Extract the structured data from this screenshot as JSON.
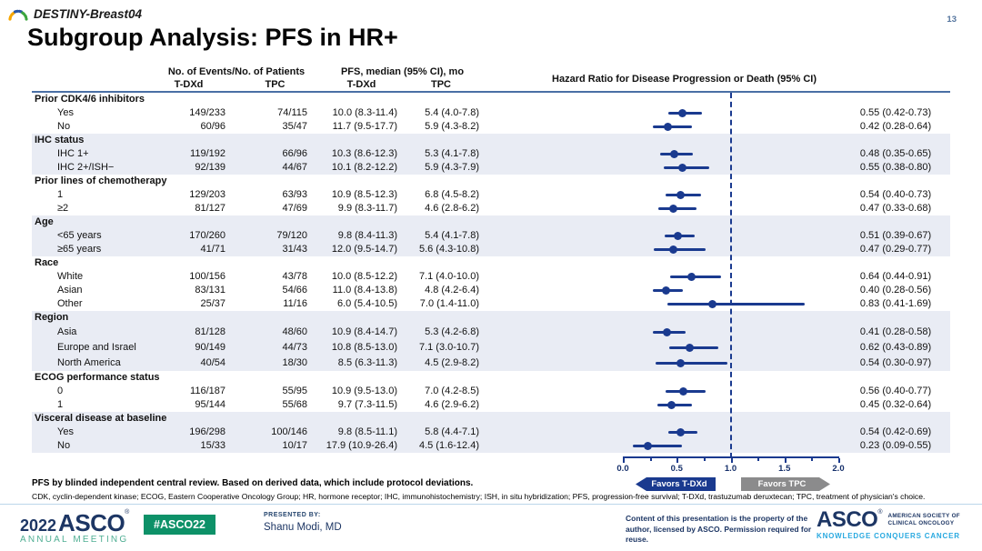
{
  "slide": {
    "program": "DESTINY-Breast04",
    "page_number": "13",
    "title": "Subgroup Analysis: PFS in HR+"
  },
  "table": {
    "headers": {
      "events_group": "No. of Events/No. of Patients",
      "events_tdxd": "T-DXd",
      "events_tpc": "TPC",
      "pfs_group": "PFS, median (95% CI), mo",
      "pfs_tdxd": "T-DXd",
      "pfs_tpc": "TPC",
      "hr_group": "Hazard Ratio for Disease Progression or Death  (95% CI)"
    }
  },
  "chart_data": {
    "type": "forest",
    "title": "Subgroup Analysis: PFS in HR+",
    "x_axis": {
      "range": [
        0.0,
        2.0
      ],
      "ticks": [
        0.0,
        0.5,
        1.0,
        1.5,
        2.0
      ],
      "tick_labels": [
        "0.0",
        "0.5",
        "1.0",
        "1.5",
        "2.0"
      ],
      "reference_line": 1.0
    },
    "favors_left": "Favors T-DXd",
    "favors_right": "Favors TPC",
    "groups": [
      {
        "label": "Prior CDK4/6 inhibitors",
        "rows": [
          {
            "label": "Yes",
            "events_tdxd": "149/233",
            "events_tpc": "74/115",
            "pfs_tdxd": "10.0 (8.3-11.4)",
            "pfs_tpc": "5.4 (4.0-7.8)",
            "hr": 0.55,
            "ci": [
              0.42,
              0.73
            ],
            "hr_text": "0.55 (0.42-0.73)"
          },
          {
            "label": "No",
            "events_tdxd": "60/96",
            "events_tpc": "35/47",
            "pfs_tdxd": "11.7 (9.5-17.7)",
            "pfs_tpc": "5.9 (4.3-8.2)",
            "hr": 0.42,
            "ci": [
              0.28,
              0.64
            ],
            "hr_text": "0.42 (0.28-0.64)"
          }
        ]
      },
      {
        "label": "IHC status",
        "rows": [
          {
            "label": "IHC 1+",
            "events_tdxd": "119/192",
            "events_tpc": "66/96",
            "pfs_tdxd": "10.3 (8.6-12.3)",
            "pfs_tpc": "5.3 (4.1-7.8)",
            "hr": 0.48,
            "ci": [
              0.35,
              0.65
            ],
            "hr_text": "0.48 (0.35-0.65)"
          },
          {
            "label": "IHC 2+/ISH−",
            "events_tdxd": "92/139",
            "events_tpc": "44/67",
            "pfs_tdxd": "10.1 (8.2-12.2)",
            "pfs_tpc": "5.9 (4.3-7.9)",
            "hr": 0.55,
            "ci": [
              0.38,
              0.8
            ],
            "hr_text": "0.55 (0.38-0.80)"
          }
        ]
      },
      {
        "label": "Prior lines of chemotherapy",
        "rows": [
          {
            "label": "1",
            "events_tdxd": "129/203",
            "events_tpc": "63/93",
            "pfs_tdxd": "10.9 (8.5-12.3)",
            "pfs_tpc": "6.8 (4.5-8.2)",
            "hr": 0.54,
            "ci": [
              0.4,
              0.73
            ],
            "hr_text": "0.54 (0.40-0.73)"
          },
          {
            "label": "≥2",
            "events_tdxd": "81/127",
            "events_tpc": "47/69",
            "pfs_tdxd": "9.9 (8.3-11.7)",
            "pfs_tpc": "4.6 (2.8-6.2)",
            "hr": 0.47,
            "ci": [
              0.33,
              0.68
            ],
            "hr_text": "0.47 (0.33-0.68)"
          }
        ]
      },
      {
        "label": "Age",
        "rows": [
          {
            "label": "<65 years",
            "events_tdxd": "170/260",
            "events_tpc": "79/120",
            "pfs_tdxd": "9.8 (8.4-11.3)",
            "pfs_tpc": "5.4 (4.1-7.8)",
            "hr": 0.51,
            "ci": [
              0.39,
              0.67
            ],
            "hr_text": "0.51 (0.39-0.67)"
          },
          {
            "label": "≥65 years",
            "events_tdxd": "41/71",
            "events_tpc": "31/43",
            "pfs_tdxd": "12.0 (9.5-14.7)",
            "pfs_tpc": "5.6 (4.3-10.8)",
            "hr": 0.47,
            "ci": [
              0.29,
              0.77
            ],
            "hr_text": "0.47 (0.29-0.77)"
          }
        ]
      },
      {
        "label": "Race",
        "rows": [
          {
            "label": "White",
            "events_tdxd": "100/156",
            "events_tpc": "43/78",
            "pfs_tdxd": "10.0 (8.5-12.2)",
            "pfs_tpc": "7.1 (4.0-10.0)",
            "hr": 0.64,
            "ci": [
              0.44,
              0.91
            ],
            "hr_text": "0.64 (0.44-0.91)"
          },
          {
            "label": "Asian",
            "events_tdxd": "83/131",
            "events_tpc": "54/66",
            "pfs_tdxd": "11.0 (8.4-13.8)",
            "pfs_tpc": "4.8 (4.2-6.4)",
            "hr": 0.4,
            "ci": [
              0.28,
              0.56
            ],
            "hr_text": "0.40 (0.28-0.56)"
          },
          {
            "label": "Other",
            "events_tdxd": "25/37",
            "events_tpc": "11/16",
            "pfs_tdxd": "6.0 (5.4-10.5)",
            "pfs_tpc": "7.0 (1.4-11.0)",
            "hr": 0.83,
            "ci": [
              0.41,
              1.69
            ],
            "hr_text": "0.83 (0.41-1.69)"
          }
        ]
      },
      {
        "label": "Region",
        "rows": [
          {
            "label": "Asia",
            "events_tdxd": "81/128",
            "events_tpc": "48/60",
            "pfs_tdxd": "10.9 (8.4-14.7)",
            "pfs_tpc": "5.3 (4.2-6.8)",
            "hr": 0.41,
            "ci": [
              0.28,
              0.58
            ],
            "hr_text": "0.41 (0.28-0.58)"
          },
          {
            "label": "Europe and Israel",
            "events_tdxd": "90/149",
            "events_tpc": "44/73",
            "pfs_tdxd": "10.8 (8.5-13.0)",
            "pfs_tpc": "7.1 (3.0-10.7)",
            "hr": 0.62,
            "ci": [
              0.43,
              0.89
            ],
            "hr_text": "0.62 (0.43-0.89)"
          },
          {
            "label": "North America",
            "events_tdxd": "40/54",
            "events_tpc": "18/30",
            "pfs_tdxd": "8.5 (6.3-11.3)",
            "pfs_tpc": "4.5 (2.9-8.2)",
            "hr": 0.54,
            "ci": [
              0.3,
              0.97
            ],
            "hr_text": "0.54 (0.30-0.97)"
          }
        ]
      },
      {
        "label": "ECOG performance status",
        "rows": [
          {
            "label": "0",
            "events_tdxd": "116/187",
            "events_tpc": "55/95",
            "pfs_tdxd": "10.9 (9.5-13.0)",
            "pfs_tpc": "7.0 (4.2-8.5)",
            "hr": 0.56,
            "ci": [
              0.4,
              0.77
            ],
            "hr_text": "0.56 (0.40-0.77)"
          },
          {
            "label": "1",
            "events_tdxd": "95/144",
            "events_tpc": "55/68",
            "pfs_tdxd": "9.7 (7.3-11.5)",
            "pfs_tpc": "4.6 (2.9-6.2)",
            "hr": 0.45,
            "ci": [
              0.32,
              0.64
            ],
            "hr_text": "0.45 (0.32-0.64)"
          }
        ]
      },
      {
        "label": "Visceral disease at baseline",
        "rows": [
          {
            "label": "Yes",
            "events_tdxd": "196/298",
            "events_tpc": "100/146",
            "pfs_tdxd": "9.8 (8.5-11.1)",
            "pfs_tpc": "5.8 (4.4-7.1)",
            "hr": 0.54,
            "ci": [
              0.42,
              0.69
            ],
            "hr_text": "0.54 (0.42-0.69)"
          },
          {
            "label": "No",
            "events_tdxd": "15/33",
            "events_tpc": "10/17",
            "pfs_tdxd": "17.9 (10.9-26.4)",
            "pfs_tpc": "4.5 (1.6-12.4)",
            "hr": 0.23,
            "ci": [
              0.09,
              0.55
            ],
            "hr_text": "0.23 (0.09-0.55)"
          }
        ]
      }
    ]
  },
  "footnotes": {
    "line1": "PFS by blinded independent central review. Based on derived data, which include protocol deviations.",
    "line2": "CDK, cyclin-dependent kinase; ECOG, Eastern Cooperative Oncology Group; HR, hormone receptor; IHC, immunohistochemistry; ISH, in situ hybridization; PFS, progression-free survival; T-DXd, trastuzumab deruxtecan; TPC, treatment of physician's choice."
  },
  "footer": {
    "meeting_year": "2022",
    "meeting_org": "ASCO",
    "meeting_name": "ANNUAL MEETING",
    "registered": "®",
    "hashtag": "#ASCO22",
    "presented_by_label": "PRESENTED BY:",
    "presenter": "Shanu Modi, MD",
    "disclaimer": "Content of this presentation is the property of the author, licensed by ASCO. Permission required for reuse.",
    "org_name": "ASCO",
    "org_tagline1": "AMERICAN SOCIETY OF",
    "org_tagline2": "CLINICAL ONCOLOGY",
    "org_motto": "KNOWLEDGE CONQUERS CANCER"
  },
  "colors": {
    "navy": "#1a3a8f",
    "rule_blue": "#4a6fa5",
    "band": "#e9ecf4",
    "gray_arrow": "#8b8b8c",
    "asco_navy": "#1d3664",
    "asco_green": "#0d9168",
    "asco_light_green": "#4fae93",
    "asco_cyan": "#29a9e0"
  }
}
